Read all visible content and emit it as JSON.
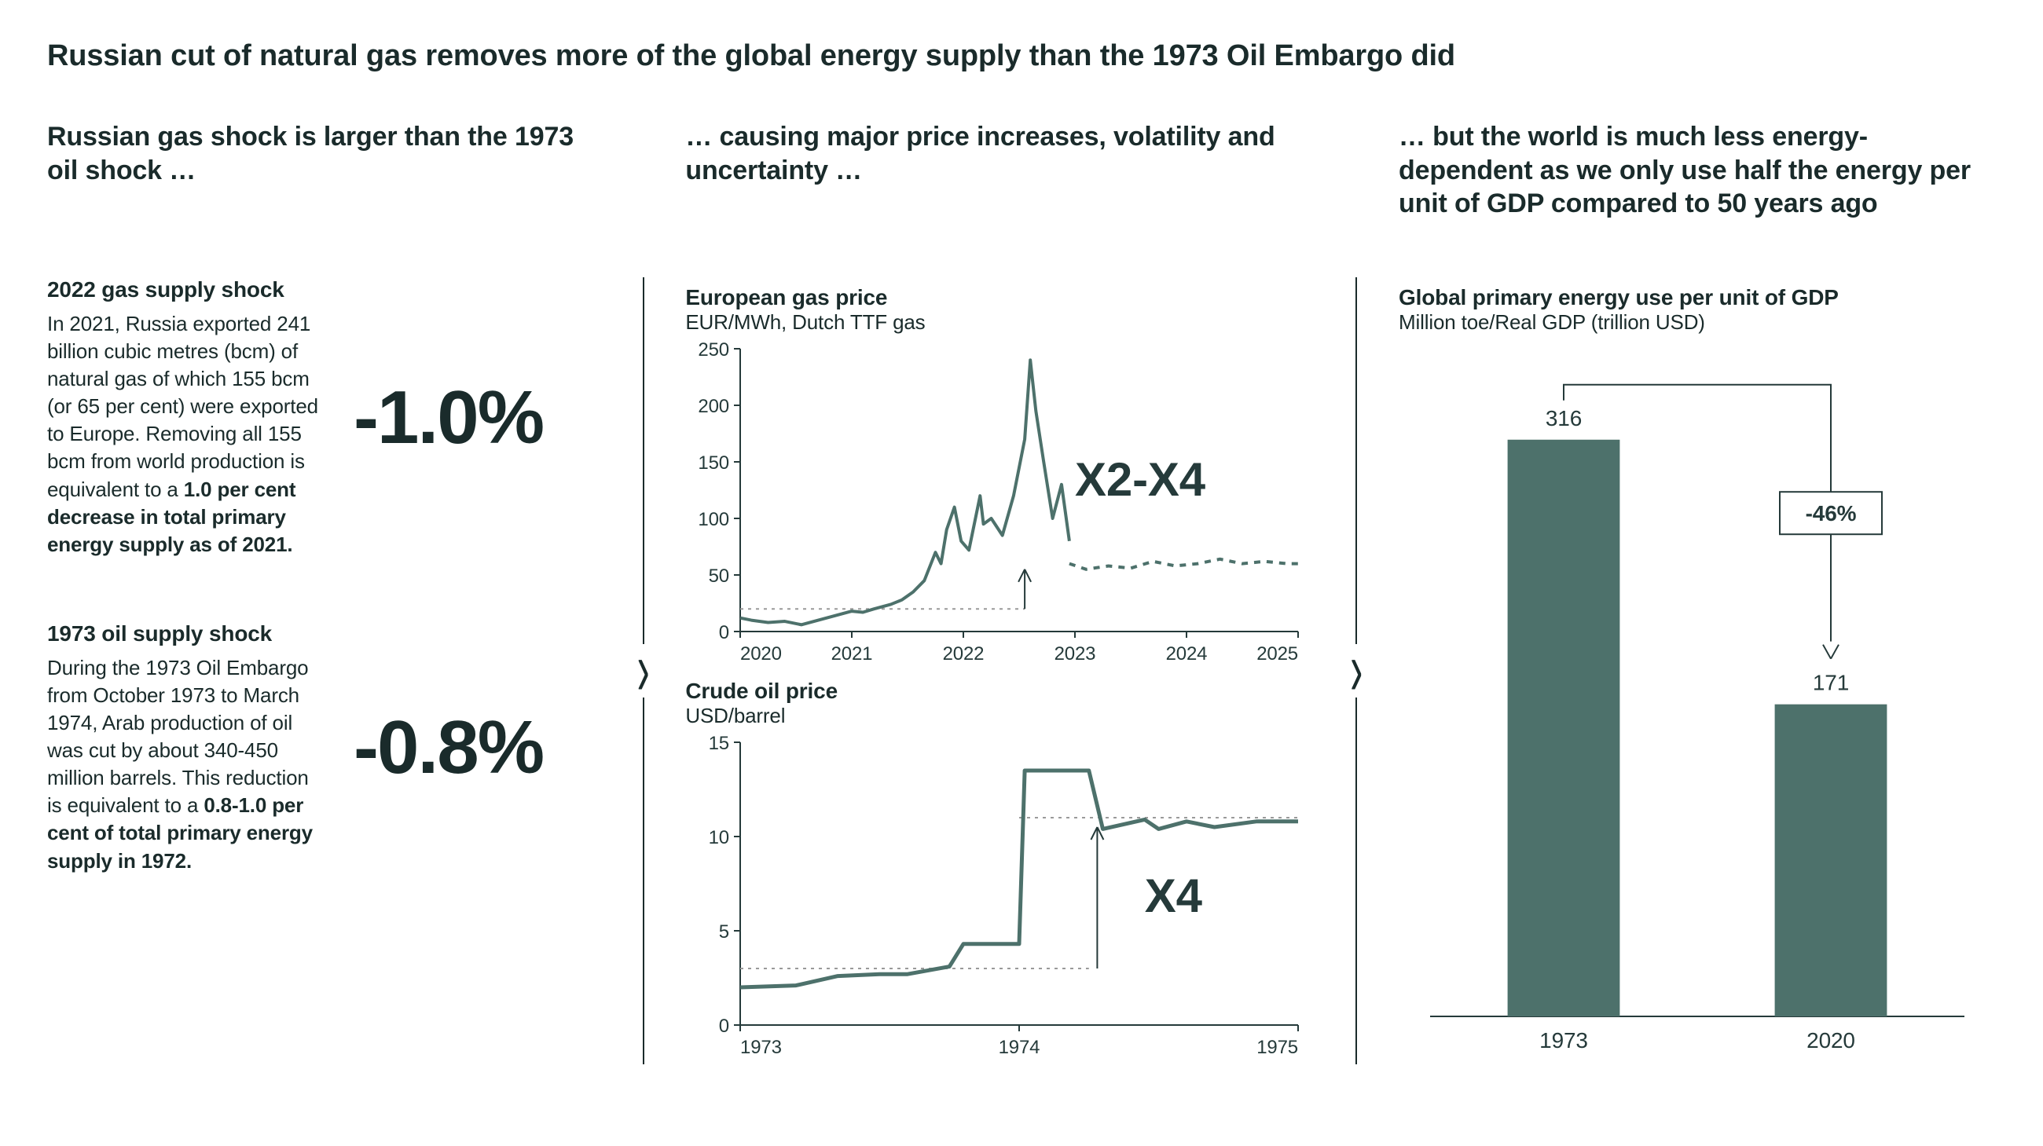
{
  "colors": {
    "ink": "#253a3a",
    "series": "#4d716b",
    "series_dash": "#4d716b",
    "grid": "#9a9a9a",
    "bar": "#4d716b",
    "bg": "#ffffff"
  },
  "headline": "Russian cut of natural gas removes more of the global energy supply than the 1973 Oil Embargo did",
  "left": {
    "subhead": "Russian gas shock is larger than the 1973 oil shock …",
    "shock2022": {
      "title": "2022 gas supply shock",
      "body_plain": "In 2021, Russia exported 241 billion cubic metres (bcm) of natural gas of which 155 bcm (or 65 per cent) were exported to Europe. Removing all 155 bcm from world production is equivalent to a ",
      "body_bold": "1.0 per cent decrease in total primary energy supply as of 2021.",
      "stat": "-1.0%"
    },
    "shock1973": {
      "title": "1973 oil supply shock",
      "body_plain": "During the 1973 Oil Embargo from October 1973 to March 1974, Arab production of oil was cut by about 340-450 million barrels. This reduction is equivalent to a ",
      "body_bold": "0.8-1.0 per cent of total primary energy supply in 1972.",
      "stat": "-0.8%"
    }
  },
  "mid": {
    "subhead": "… causing major price increases, volatility and uncertainty …",
    "gas_chart": {
      "type": "line",
      "title": "European gas price",
      "subtitle": "EUR/MWh, Dutch TTF gas",
      "callout": "X2-X4",
      "x_labels": [
        "2020",
        "2021",
        "2022",
        "2023",
        "2024",
        "2025"
      ],
      "xlim": [
        2020,
        2025
      ],
      "ylim": [
        0,
        250
      ],
      "ytick_step": 50,
      "line_width": 4,
      "line_color": "#4d716b",
      "projection_dash": "8 8",
      "ref_dash": "4 6",
      "ref_y": 20,
      "series_actual": [
        [
          2020.0,
          12
        ],
        [
          2020.1,
          10
        ],
        [
          2020.25,
          8
        ],
        [
          2020.4,
          9
        ],
        [
          2020.55,
          6
        ],
        [
          2020.7,
          10
        ],
        [
          2020.85,
          14
        ],
        [
          2021.0,
          18
        ],
        [
          2021.1,
          17
        ],
        [
          2021.2,
          20
        ],
        [
          2021.35,
          24
        ],
        [
          2021.45,
          28
        ],
        [
          2021.55,
          35
        ],
        [
          2021.65,
          45
        ],
        [
          2021.75,
          70
        ],
        [
          2021.8,
          60
        ],
        [
          2021.85,
          90
        ],
        [
          2021.92,
          110
        ],
        [
          2021.98,
          80
        ],
        [
          2022.05,
          72
        ],
        [
          2022.15,
          120
        ],
        [
          2022.18,
          95
        ],
        [
          2022.25,
          100
        ],
        [
          2022.35,
          85
        ],
        [
          2022.45,
          120
        ],
        [
          2022.55,
          170
        ],
        [
          2022.6,
          240
        ],
        [
          2022.65,
          195
        ],
        [
          2022.72,
          150
        ],
        [
          2022.8,
          100
        ],
        [
          2022.88,
          130
        ],
        [
          2022.95,
          80
        ]
      ],
      "series_projection": [
        [
          2022.95,
          60
        ],
        [
          2023.1,
          55
        ],
        [
          2023.3,
          58
        ],
        [
          2023.5,
          56
        ],
        [
          2023.7,
          62
        ],
        [
          2023.9,
          58
        ],
        [
          2024.1,
          60
        ],
        [
          2024.3,
          64
        ],
        [
          2024.5,
          60
        ],
        [
          2024.7,
          62
        ],
        [
          2024.9,
          60
        ],
        [
          2025.0,
          60
        ]
      ]
    },
    "oil_chart": {
      "type": "line",
      "title": "Crude oil price",
      "subtitle": "USD/barrel",
      "callout": "X4",
      "x_labels": [
        "1973",
        "1974",
        "1975"
      ],
      "xlim": [
        1973,
        1975
      ],
      "ylim": [
        0,
        15
      ],
      "ytick_step": 5,
      "line_width": 5,
      "line_color": "#4d716b",
      "ref_dash": "4 6",
      "ref_low_y": 3,
      "ref_high_y": 11,
      "series": [
        [
          1973.0,
          2.0
        ],
        [
          1973.2,
          2.1
        ],
        [
          1973.35,
          2.6
        ],
        [
          1973.5,
          2.7
        ],
        [
          1973.6,
          2.7
        ],
        [
          1973.75,
          3.1
        ],
        [
          1973.8,
          4.3
        ],
        [
          1973.95,
          4.3
        ],
        [
          1974.0,
          4.3
        ],
        [
          1974.02,
          13.5
        ],
        [
          1974.25,
          13.5
        ],
        [
          1974.3,
          10.4
        ],
        [
          1974.45,
          10.9
        ],
        [
          1974.5,
          10.4
        ],
        [
          1974.6,
          10.8
        ],
        [
          1974.7,
          10.5
        ],
        [
          1974.85,
          10.8
        ],
        [
          1975.0,
          10.8
        ]
      ]
    }
  },
  "right": {
    "subhead": "… but the world is much less energy-dependent as we only use half the energy per unit of GDP compared to 50 years ago",
    "chart": {
      "type": "bar",
      "title": "Global primary energy use per unit of GDP",
      "subtitle": "Million toe/Real GDP (trillion USD)",
      "categories": [
        "1973",
        "2020"
      ],
      "values": [
        316,
        171
      ],
      "value_labels": [
        "316",
        "171"
      ],
      "delta_label": "-46%",
      "ylim": [
        0,
        340
      ],
      "bar_color": "#4d716b",
      "bar_width": 0.42,
      "label_fontsize": 28
    }
  }
}
